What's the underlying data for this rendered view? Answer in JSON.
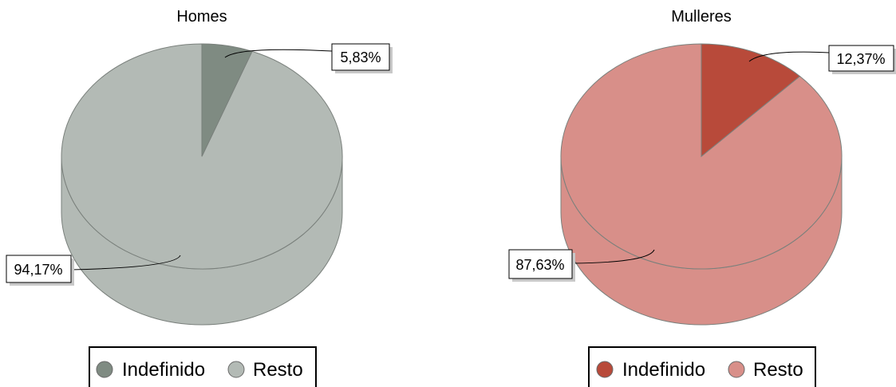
{
  "chart_data": [
    {
      "type": "pie",
      "title": "Homes",
      "slices": [
        {
          "name": "Indefinido",
          "value": 5.83,
          "label": "5,83%",
          "top_color": "#7f8b82",
          "side_color": "#6f7a71"
        },
        {
          "name": "Resto",
          "value": 94.17,
          "label": "94,17%",
          "top_color": "#b3bab5",
          "side_color": "#b3bab5"
        }
      ],
      "legend": {
        "position": "bottom",
        "entries": [
          "Indefinido",
          "Resto"
        ]
      }
    },
    {
      "type": "pie",
      "title": "Mulleres",
      "slices": [
        {
          "name": "Indefinido",
          "value": 12.37,
          "label": "12,37%",
          "top_color": "#b84a3a",
          "side_color": "#a84232"
        },
        {
          "name": "Resto",
          "value": 87.63,
          "label": "87,63%",
          "top_color": "#d88f89",
          "side_color": "#d88f89"
        }
      ],
      "legend": {
        "position": "bottom",
        "entries": [
          "Indefinido",
          "Resto"
        ]
      }
    }
  ]
}
